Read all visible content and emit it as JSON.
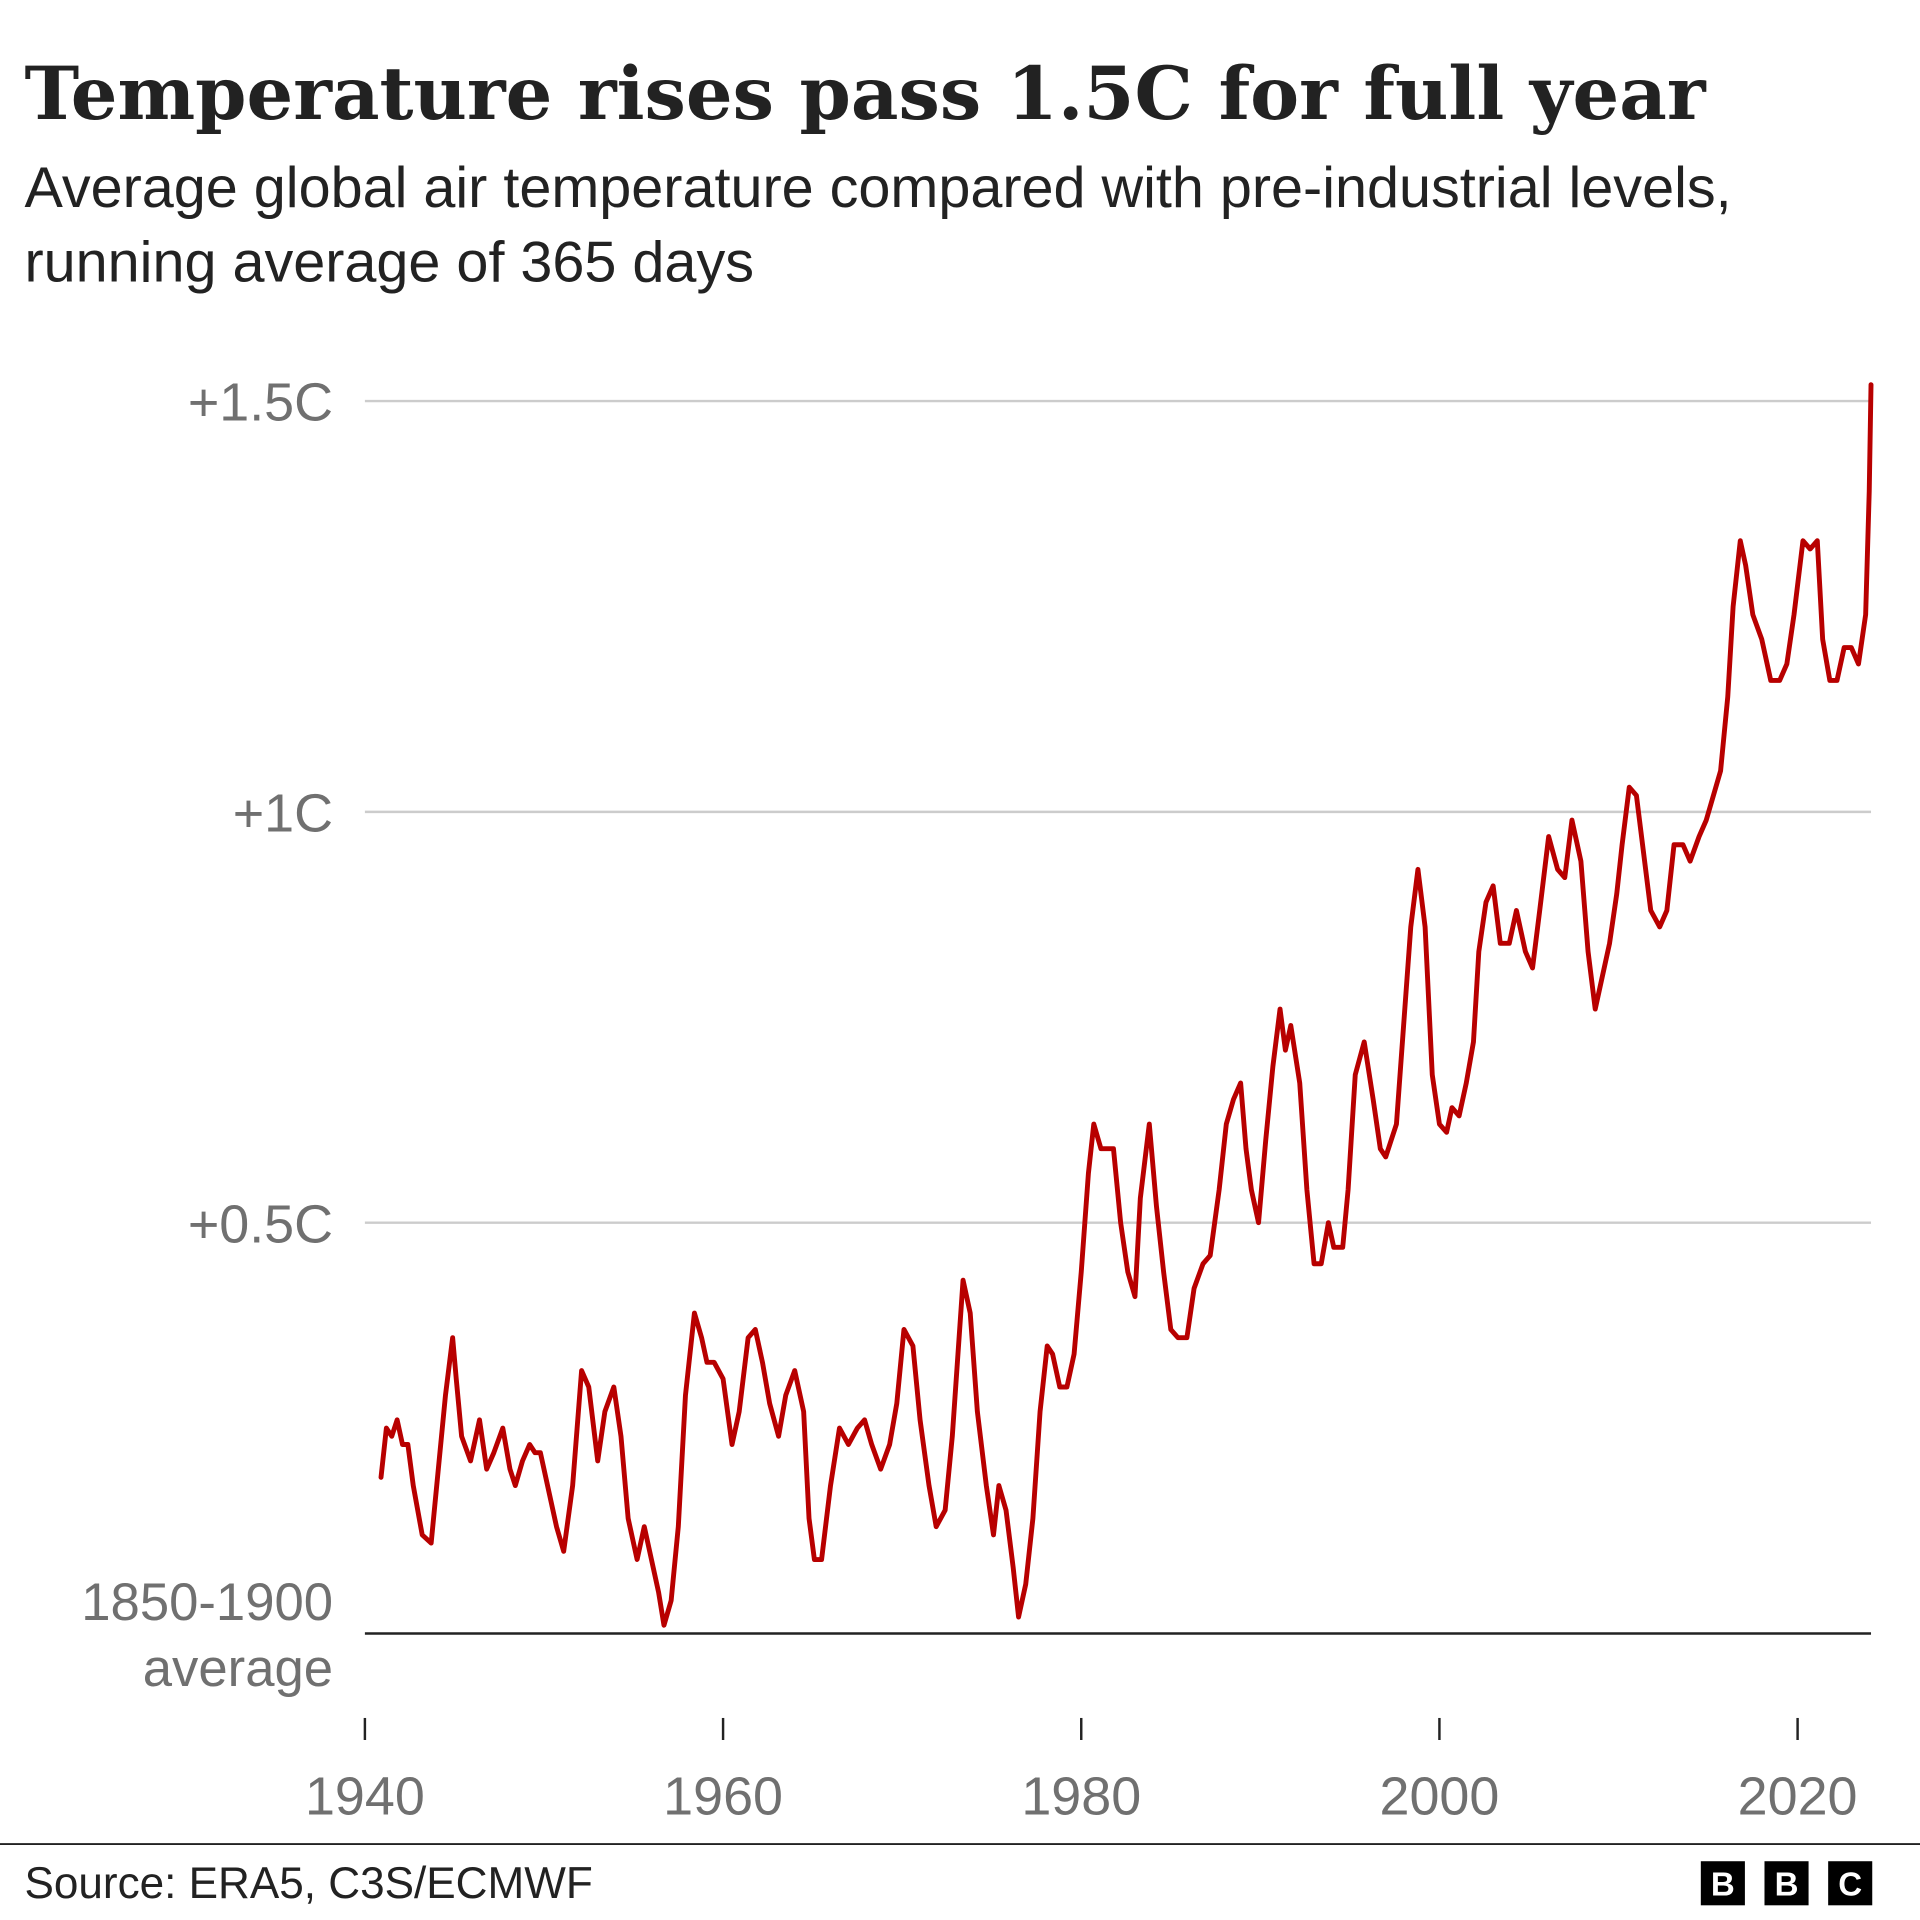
{
  "chart_data": {
    "type": "line",
    "title": "Temperature rises pass 1.5C for full year",
    "subtitle": "Average global air temperature compared with pre-industrial levels, running average of 365 days",
    "source": "Source: ERA5, C3S/ECMWF",
    "logo": "BBC",
    "color": "#b80000",
    "grid": true,
    "xlim": [
      1940,
      2024.1
    ],
    "xticks": [
      1940,
      1960,
      1980,
      2000,
      2020
    ],
    "ylim": [
      0,
      1.55
    ],
    "yticks": [
      {
        "value": 0,
        "label": "1850-1900 average"
      },
      {
        "value": 0.5,
        "label": "+0.5C"
      },
      {
        "value": 1,
        "label": "+1C"
      },
      {
        "value": 1.5,
        "label": "+1.5C"
      }
    ],
    "x": [
      1940.9,
      1941.2,
      1941.5,
      1941.8,
      1942.1,
      1942.4,
      1942.7,
      1943.2,
      1943.7,
      1944.1,
      1944.5,
      1944.9,
      1945.1,
      1945.4,
      1945.9,
      1946.4,
      1946.8,
      1947.2,
      1947.7,
      1948.1,
      1948.4,
      1948.8,
      1949.2,
      1949.5,
      1949.8,
      1950.3,
      1950.7,
      1951.1,
      1951.6,
      1952.1,
      1952.5,
      1953.0,
      1953.4,
      1953.9,
      1954.3,
      1954.7,
      1955.2,
      1955.6,
      1956.0,
      1956.4,
      1956.7,
      1957.1,
      1957.5,
      1957.9,
      1958.4,
      1958.8,
      1959.1,
      1959.5,
      1960.0,
      1960.5,
      1960.9,
      1961.4,
      1961.8,
      1962.2,
      1962.6,
      1963.1,
      1963.5,
      1964.0,
      1964.5,
      1964.8,
      1965.1,
      1965.5,
      1966.0,
      1966.5,
      1967.0,
      1967.5,
      1967.9,
      1968.3,
      1968.8,
      1969.3,
      1969.7,
      1970.1,
      1970.6,
      1971.0,
      1971.5,
      1971.9,
      1972.4,
      1972.8,
      1973.4,
      1973.8,
      1974.2,
      1974.7,
      1975.1,
      1975.4,
      1975.8,
      1976.2,
      1976.5,
      1976.9,
      1977.3,
      1977.7,
      1978.1,
      1978.4,
      1978.8,
      1979.2,
      1979.6,
      1980.0,
      1980.4,
      1980.7,
      1981.1,
      1981.5,
      1981.8,
      1982.2,
      1982.6,
      1983.0,
      1983.3,
      1983.8,
      1984.2,
      1984.6,
      1985.0,
      1985.4,
      1985.9,
      1986.3,
      1986.8,
      1987.2,
      1987.7,
      1988.1,
      1988.5,
      1988.9,
      1989.2,
      1989.5,
      1989.9,
      1990.3,
      1990.7,
      1991.1,
      1991.4,
      1991.7,
      1992.2,
      1992.6,
      1993.0,
      1993.4,
      1993.8,
      1994.1,
      1994.6,
      1994.9,
      1995.3,
      1995.8,
      1996.3,
      1996.7,
      1997.0,
      1997.6,
      1998.0,
      1998.4,
      1998.8,
      1999.2,
      1999.6,
      2000.0,
      2000.4,
      2000.7,
      2001.1,
      2001.5,
      2001.9,
      2002.2,
      2002.6,
      2003.0,
      2003.4,
      2003.9,
      2004.3,
      2004.8,
      2005.2,
      2005.6,
      2006.1,
      2006.6,
      2007.0,
      2007.4,
      2007.9,
      2008.3,
      2008.7,
      2009.1,
      2009.5,
      2009.9,
      2010.2,
      2010.6,
      2011.0,
      2011.4,
      2011.8,
      2012.3,
      2012.7,
      2013.1,
      2013.6,
      2014.0,
      2014.5,
      2014.9,
      2015.3,
      2015.7,
      2016.1,
      2016.4,
      2016.8,
      2017.1,
      2017.5,
      2018.0,
      2018.5,
      2019.0,
      2019.4,
      2019.8,
      2020.3,
      2020.7,
      2021.1,
      2021.4,
      2021.8,
      2022.2,
      2022.6,
      2023.0,
      2023.4,
      2023.8,
      2024.0,
      2024.1
    ],
    "values": [
      0.19,
      0.25,
      0.24,
      0.26,
      0.23,
      0.23,
      0.18,
      0.12,
      0.11,
      0.2,
      0.29,
      0.36,
      0.31,
      0.24,
      0.21,
      0.26,
      0.2,
      0.22,
      0.25,
      0.2,
      0.18,
      0.21,
      0.23,
      0.22,
      0.22,
      0.17,
      0.13,
      0.1,
      0.18,
      0.32,
      0.3,
      0.21,
      0.27,
      0.3,
      0.24,
      0.14,
      0.09,
      0.13,
      0.09,
      0.05,
      0.01,
      0.04,
      0.13,
      0.29,
      0.39,
      0.36,
      0.33,
      0.33,
      0.31,
      0.23,
      0.27,
      0.36,
      0.37,
      0.33,
      0.28,
      0.24,
      0.29,
      0.32,
      0.27,
      0.14,
      0.09,
      0.09,
      0.18,
      0.25,
      0.23,
      0.25,
      0.26,
      0.23,
      0.2,
      0.23,
      0.28,
      0.37,
      0.35,
      0.26,
      0.18,
      0.13,
      0.15,
      0.24,
      0.43,
      0.39,
      0.27,
      0.18,
      0.12,
      0.18,
      0.15,
      0.08,
      0.02,
      0.06,
      0.14,
      0.27,
      0.35,
      0.34,
      0.3,
      0.3,
      0.34,
      0.44,
      0.56,
      0.62,
      0.59,
      0.59,
      0.59,
      0.5,
      0.44,
      0.41,
      0.53,
      0.62,
      0.52,
      0.44,
      0.37,
      0.36,
      0.36,
      0.42,
      0.45,
      0.46,
      0.54,
      0.62,
      0.65,
      0.67,
      0.59,
      0.54,
      0.5,
      0.6,
      0.69,
      0.76,
      0.71,
      0.74,
      0.67,
      0.54,
      0.45,
      0.45,
      0.5,
      0.47,
      0.47,
      0.54,
      0.68,
      0.72,
      0.65,
      0.59,
      0.58,
      0.62,
      0.74,
      0.86,
      0.93,
      0.86,
      0.68,
      0.62,
      0.61,
      0.64,
      0.63,
      0.67,
      0.72,
      0.83,
      0.89,
      0.91,
      0.84,
      0.84,
      0.88,
      0.83,
      0.81,
      0.88,
      0.97,
      0.93,
      0.92,
      0.99,
      0.94,
      0.83,
      0.76,
      0.8,
      0.84,
      0.9,
      0.96,
      1.03,
      1.02,
      0.95,
      0.88,
      0.86,
      0.88,
      0.96,
      0.96,
      0.94,
      0.97,
      0.99,
      1.02,
      1.05,
      1.14,
      1.25,
      1.33,
      1.3,
      1.24,
      1.21,
      1.16,
      1.16,
      1.18,
      1.24,
      1.33,
      1.32,
      1.33,
      1.21,
      1.16,
      1.16,
      1.2,
      1.2,
      1.18,
      1.24,
      1.39,
      1.52
    ]
  }
}
